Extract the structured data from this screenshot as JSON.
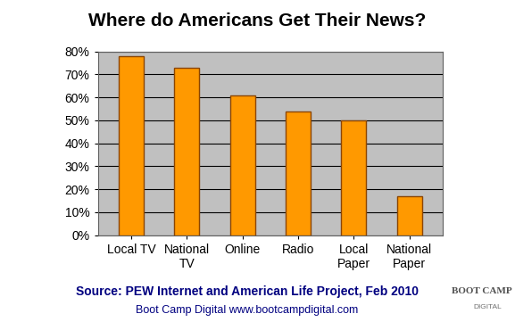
{
  "chart_data": {
    "type": "bar",
    "title": "Where do Americans Get Their News?",
    "categories": [
      "Local TV",
      "National TV",
      "Online",
      "Radio",
      "Local Paper",
      "National Paper"
    ],
    "values": [
      78,
      73,
      61,
      54,
      50,
      17
    ],
    "color": "#ff9900",
    "ylim": [
      0,
      80
    ],
    "yticks": [
      {
        "value": 0,
        "label": "0%"
      },
      {
        "value": 10,
        "label": "10%"
      },
      {
        "value": 20,
        "label": "20%"
      },
      {
        "value": 30,
        "label": "30%"
      },
      {
        "value": 40,
        "label": "40%"
      },
      {
        "value": 50,
        "label": "50%"
      },
      {
        "value": 60,
        "label": "60%"
      },
      {
        "value": 70,
        "label": "70%"
      },
      {
        "value": 80,
        "label": "80%"
      }
    ],
    "grid": true,
    "annotations": [
      "Source: PEW Internet and American Life Project, Feb 2010",
      "Boot Camp Digital www.bootcampdigital.com",
      "BOOT CAMP",
      "DIGITAL"
    ]
  }
}
